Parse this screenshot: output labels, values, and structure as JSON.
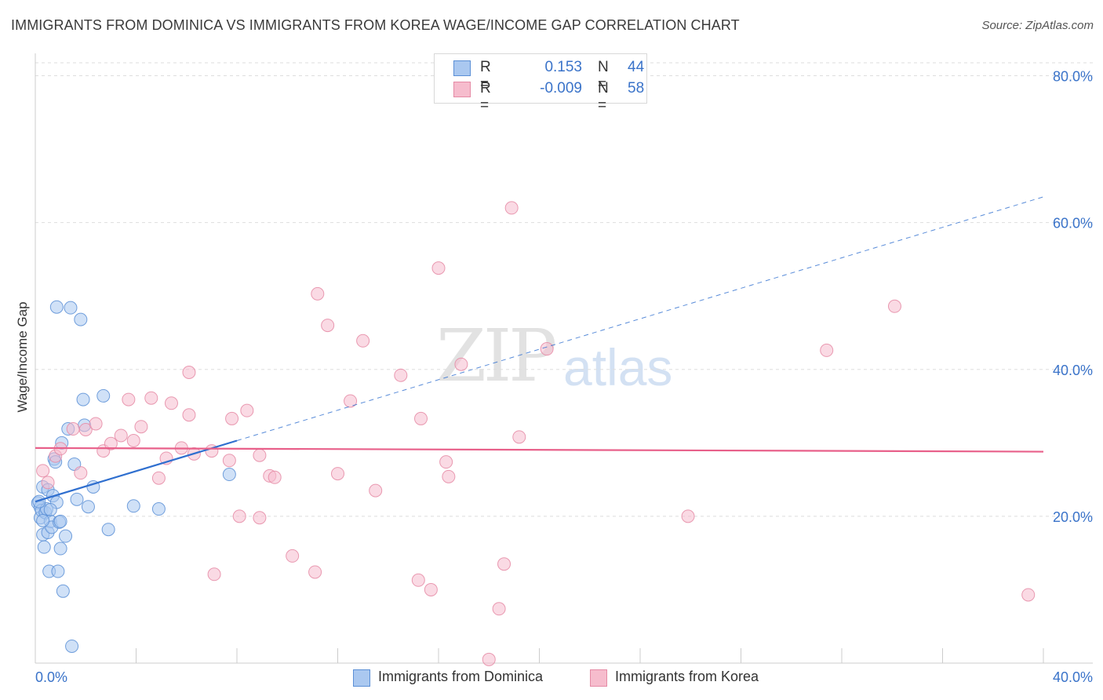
{
  "title": "IMMIGRANTS FROM DOMINICA VS IMMIGRANTS FROM KOREA WAGE/INCOME GAP CORRELATION CHART",
  "source": "Source: ZipAtlas.com",
  "watermark": {
    "zip": "ZIP",
    "atlas": "atlas"
  },
  "legend": {
    "rows": [
      {
        "r_label": "R =",
        "r_value": "0.153",
        "n_label": "N =",
        "n_value": "44"
      },
      {
        "r_label": "R =",
        "r_value": "-0.009",
        "n_label": "N =",
        "n_value": "58"
      }
    ]
  },
  "colors": {
    "dominica_fill": "#aac8f0",
    "dominica_stroke": "#5b8fd6",
    "dominica_line": "#2f6fcf",
    "korea_fill": "#f6bccd",
    "korea_stroke": "#e58aa5",
    "korea_line": "#e8608a",
    "axis_text": "#3a73c9",
    "grid": "#dddddd"
  },
  "chart_data": {
    "type": "scatter",
    "title": "IMMIGRANTS FROM DOMINICA VS IMMIGRANTS FROM KOREA WAGE/INCOME GAP CORRELATION CHART",
    "xlabel": "",
    "ylabel": "Wage/Income Gap",
    "xlim": [
      0,
      40
    ],
    "ylim": [
      0,
      80
    ],
    "x_tick_labels": [
      "0.0%",
      "40.0%"
    ],
    "y_ticks": [
      20,
      40,
      60,
      80
    ],
    "y_tick_labels": [
      "20.0%",
      "40.0%",
      "60.0%",
      "80.0%"
    ],
    "series": [
      {
        "name": "Immigrants from Dominica",
        "r": 0.153,
        "n": 44,
        "trend": {
          "x0": 0,
          "y0": 22.0,
          "x1": 40,
          "y1": 63.5,
          "solid_until_x": 8.0
        },
        "points": [
          [
            0.1,
            21.8
          ],
          [
            0.2,
            21.2
          ],
          [
            0.2,
            19.8
          ],
          [
            0.25,
            20.8
          ],
          [
            0.3,
            17.5
          ],
          [
            0.3,
            24.0
          ],
          [
            0.35,
            15.8
          ],
          [
            0.4,
            20.5
          ],
          [
            0.45,
            21.0
          ],
          [
            0.5,
            23.6
          ],
          [
            0.5,
            17.8
          ],
          [
            0.55,
            12.5
          ],
          [
            0.6,
            19.3
          ],
          [
            0.65,
            18.5
          ],
          [
            0.7,
            22.8
          ],
          [
            0.75,
            27.8
          ],
          [
            0.8,
            27.4
          ],
          [
            0.85,
            21.9
          ],
          [
            0.85,
            48.5
          ],
          [
            0.9,
            12.5
          ],
          [
            0.95,
            19.2
          ],
          [
            1.0,
            15.6
          ],
          [
            1.05,
            30.0
          ],
          [
            1.1,
            9.8
          ],
          [
            1.2,
            17.3
          ],
          [
            1.3,
            31.9
          ],
          [
            1.4,
            48.4
          ],
          [
            1.45,
            2.3
          ],
          [
            1.55,
            27.1
          ],
          [
            1.65,
            22.3
          ],
          [
            1.8,
            46.8
          ],
          [
            1.9,
            35.9
          ],
          [
            1.95,
            32.4
          ],
          [
            2.1,
            21.3
          ],
          [
            2.3,
            24.0
          ],
          [
            2.7,
            36.4
          ],
          [
            2.9,
            18.2
          ],
          [
            3.9,
            21.4
          ],
          [
            4.9,
            21.0
          ],
          [
            7.7,
            25.7
          ],
          [
            0.15,
            22.0
          ],
          [
            0.3,
            19.4
          ],
          [
            0.6,
            20.9
          ],
          [
            1.0,
            19.3
          ]
        ]
      },
      {
        "name": "Immigrants from Korea",
        "r": -0.009,
        "n": 58,
        "trend": {
          "x0": 0,
          "y0": 29.3,
          "x1": 40,
          "y1": 28.8
        },
        "points": [
          [
            0.3,
            26.2
          ],
          [
            0.5,
            24.6
          ],
          [
            0.8,
            28.2
          ],
          [
            1.0,
            29.2
          ],
          [
            1.5,
            31.9
          ],
          [
            1.8,
            25.9
          ],
          [
            2.0,
            31.8
          ],
          [
            2.4,
            32.6
          ],
          [
            2.7,
            28.9
          ],
          [
            3.0,
            29.9
          ],
          [
            3.4,
            31.0
          ],
          [
            3.7,
            35.9
          ],
          [
            3.9,
            30.3
          ],
          [
            4.2,
            32.2
          ],
          [
            4.6,
            36.1
          ],
          [
            4.9,
            25.2
          ],
          [
            5.2,
            27.9
          ],
          [
            5.4,
            35.4
          ],
          [
            5.8,
            29.3
          ],
          [
            6.1,
            33.8
          ],
          [
            6.1,
            39.6
          ],
          [
            6.3,
            28.5
          ],
          [
            7.0,
            28.9
          ],
          [
            7.1,
            12.1
          ],
          [
            7.7,
            27.6
          ],
          [
            7.8,
            33.3
          ],
          [
            8.1,
            20.0
          ],
          [
            8.4,
            34.4
          ],
          [
            8.9,
            28.3
          ],
          [
            9.3,
            25.5
          ],
          [
            8.9,
            19.8
          ],
          [
            9.5,
            25.3
          ],
          [
            10.2,
            14.6
          ],
          [
            11.1,
            12.4
          ],
          [
            11.2,
            50.3
          ],
          [
            11.6,
            46.0
          ],
          [
            12.0,
            25.8
          ],
          [
            12.5,
            35.7
          ],
          [
            13.0,
            43.9
          ],
          [
            13.5,
            23.5
          ],
          [
            14.5,
            39.2
          ],
          [
            15.2,
            11.3
          ],
          [
            15.3,
            33.3
          ],
          [
            15.7,
            10.0
          ],
          [
            16.0,
            53.8
          ],
          [
            16.3,
            27.4
          ],
          [
            16.4,
            25.4
          ],
          [
            16.9,
            40.7
          ],
          [
            18.0,
            0.5
          ],
          [
            18.4,
            7.4
          ],
          [
            18.6,
            13.5
          ],
          [
            18.9,
            62.0
          ],
          [
            19.2,
            30.8
          ],
          [
            20.3,
            42.8
          ],
          [
            25.9,
            20.0
          ],
          [
            31.4,
            42.6
          ],
          [
            34.1,
            48.6
          ],
          [
            39.4,
            9.3
          ]
        ]
      }
    ]
  }
}
